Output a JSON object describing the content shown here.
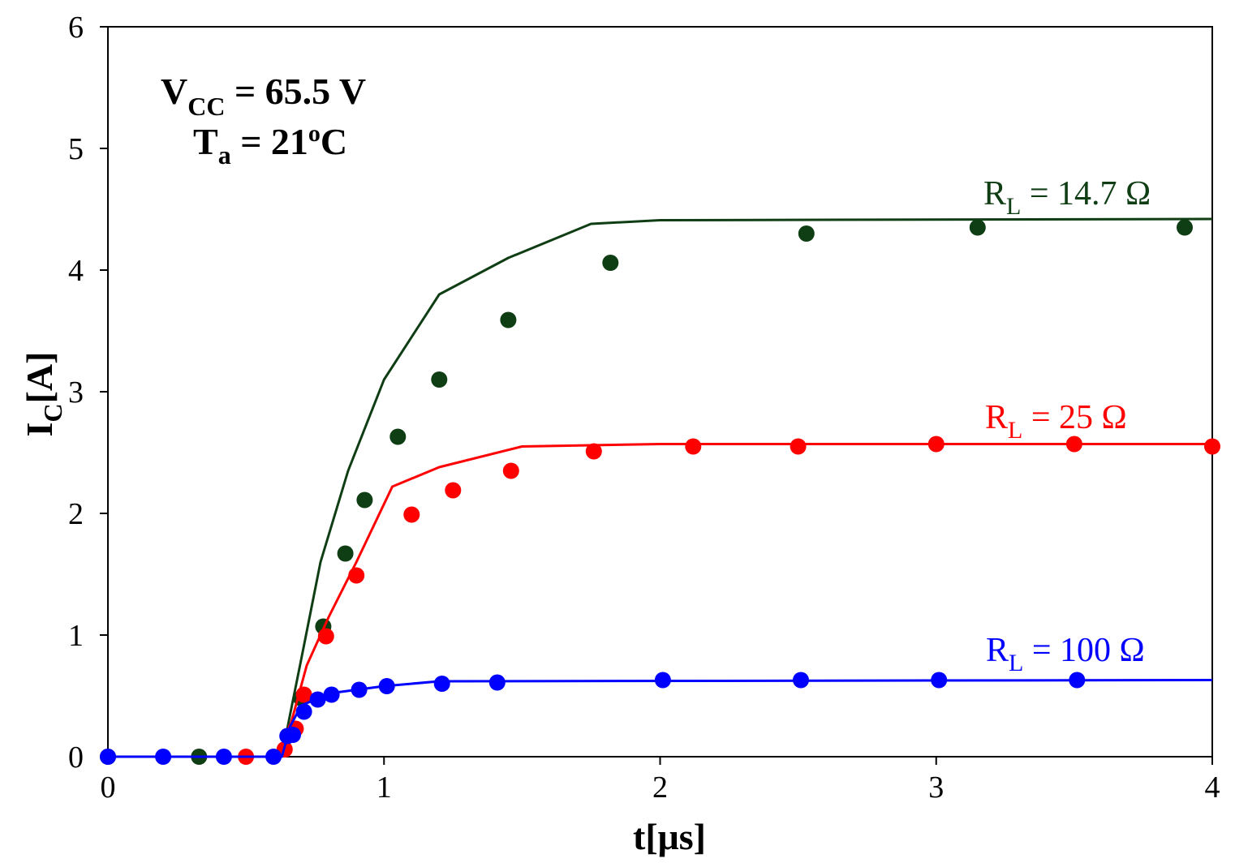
{
  "chart_data": {
    "type": "scatter",
    "title": "",
    "xlabel": {
      "main": "t[",
      "unit": "μs",
      "close": "]"
    },
    "ylabel": {
      "main": "I",
      "sub": "C",
      "rest": "[A]"
    },
    "xlim": [
      0,
      4
    ],
    "ylim": [
      0,
      6
    ],
    "xticks": [
      "0",
      "1",
      "2",
      "3",
      "4"
    ],
    "yticks": [
      "0",
      "1",
      "2",
      "3",
      "4",
      "5",
      "6"
    ],
    "grid": false,
    "conditions": {
      "vcc": {
        "main": "V",
        "sub": "CC",
        "rest": " = 65.5 V"
      },
      "ta": {
        "main": "T",
        "sub": "a",
        "rest": " = 21",
        "sup": "o",
        "tail": "C"
      }
    },
    "series": [
      {
        "name": "R_L = 14.7 Ω",
        "label": {
          "main": "R",
          "sub": "L",
          "rest": " = 14.7 Ω"
        },
        "color": "#0f3d14",
        "line": [
          [
            0,
            0
          ],
          [
            0.63,
            0
          ],
          [
            0.66,
            0.35
          ],
          [
            0.7,
            0.8
          ],
          [
            0.77,
            1.6
          ],
          [
            0.87,
            2.35
          ],
          [
            1.0,
            3.1
          ],
          [
            1.2,
            3.8
          ],
          [
            1.45,
            4.1
          ],
          [
            1.75,
            4.38
          ],
          [
            2.0,
            4.41
          ],
          [
            4.0,
            4.42
          ]
        ],
        "points": [
          [
            0,
            0
          ],
          [
            0.33,
            0
          ],
          [
            0.7,
            0.48
          ],
          [
            0.78,
            1.07
          ],
          [
            0.86,
            1.67
          ],
          [
            0.93,
            2.11
          ],
          [
            1.05,
            2.63
          ],
          [
            1.2,
            3.1
          ],
          [
            1.45,
            3.59
          ],
          [
            1.82,
            4.06
          ],
          [
            2.53,
            4.3
          ],
          [
            3.15,
            4.35
          ],
          [
            3.9,
            4.35
          ]
        ]
      },
      {
        "name": "R_L = 25 Ω",
        "label": {
          "main": "R",
          "sub": "L",
          "rest": " = 25 Ω"
        },
        "color": "#ff0000",
        "line": [
          [
            0,
            0
          ],
          [
            0.63,
            0
          ],
          [
            0.66,
            0.25
          ],
          [
            0.72,
            0.75
          ],
          [
            0.8,
            1.15
          ],
          [
            0.9,
            1.6
          ],
          [
            1.03,
            2.22
          ],
          [
            1.2,
            2.38
          ],
          [
            1.5,
            2.55
          ],
          [
            2.0,
            2.57
          ],
          [
            4.0,
            2.57
          ]
        ],
        "points": [
          [
            0.5,
            0
          ],
          [
            0.64,
            0.06
          ],
          [
            0.68,
            0.23
          ],
          [
            0.71,
            0.51
          ],
          [
            0.79,
            0.99
          ],
          [
            0.9,
            1.49
          ],
          [
            1.1,
            1.99
          ],
          [
            1.25,
            2.19
          ],
          [
            1.46,
            2.35
          ],
          [
            1.76,
            2.51
          ],
          [
            2.12,
            2.55
          ],
          [
            2.5,
            2.55
          ],
          [
            3.0,
            2.57
          ],
          [
            3.5,
            2.57
          ],
          [
            4.0,
            2.55
          ]
        ]
      },
      {
        "name": "R_L = 100 Ω",
        "label": {
          "main": "R",
          "sub": "L",
          "rest": " = 100 Ω"
        },
        "color": "#0000ff",
        "line": [
          [
            0,
            0
          ],
          [
            0.63,
            0
          ],
          [
            0.66,
            0.25
          ],
          [
            0.7,
            0.42
          ],
          [
            0.8,
            0.52
          ],
          [
            1.0,
            0.58
          ],
          [
            1.2,
            0.62
          ],
          [
            4.0,
            0.63
          ]
        ],
        "points": [
          [
            0,
            0
          ],
          [
            0.2,
            0
          ],
          [
            0.42,
            0
          ],
          [
            0.6,
            0
          ],
          [
            0.65,
            0.17
          ],
          [
            0.67,
            0.18
          ],
          [
            0.71,
            0.37
          ],
          [
            0.76,
            0.47
          ],
          [
            0.81,
            0.51
          ],
          [
            0.91,
            0.55
          ],
          [
            1.01,
            0.58
          ],
          [
            1.21,
            0.6
          ],
          [
            1.41,
            0.61
          ],
          [
            2.01,
            0.63
          ],
          [
            2.51,
            0.63
          ],
          [
            3.01,
            0.63
          ],
          [
            3.51,
            0.63
          ]
        ]
      }
    ]
  }
}
